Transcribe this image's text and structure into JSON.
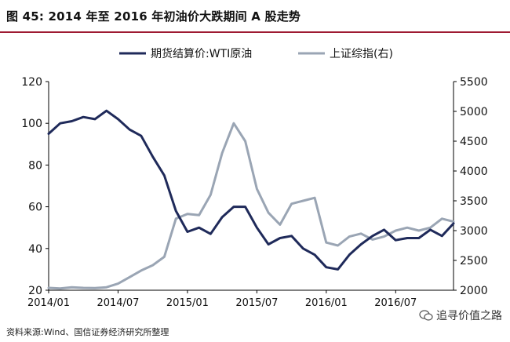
{
  "title": "图 45:  2014 年至 2016 年初油价大跌期间 A 股走势",
  "source": "资料来源:Wind、国信证券经济研究所整理",
  "watermark": "追寻价值之路",
  "colors": {
    "title_rule": "#9e1b32",
    "wti": "#1f2a5a",
    "sse": "#9aa5b4"
  },
  "chart_data": {
    "type": "line",
    "title": "",
    "legend_position": "top",
    "x": [
      "2014/01",
      "2014/02",
      "2014/03",
      "2014/04",
      "2014/05",
      "2014/06",
      "2014/07",
      "2014/08",
      "2014/09",
      "2014/10",
      "2014/11",
      "2014/12",
      "2015/01",
      "2015/02",
      "2015/03",
      "2015/04",
      "2015/05",
      "2015/06",
      "2015/07",
      "2015/08",
      "2015/09",
      "2015/10",
      "2015/11",
      "2015/12",
      "2016/01",
      "2016/02",
      "2016/03",
      "2016/04",
      "2016/05",
      "2016/06",
      "2016/07",
      "2016/08",
      "2016/09",
      "2016/10",
      "2016/11",
      "2016/12"
    ],
    "x_tick_labels": [
      "2014/01",
      "2014/07",
      "2015/01",
      "2015/07",
      "2016/01",
      "2016/07"
    ],
    "y_left": {
      "ticks": [
        20,
        40,
        60,
        80,
        100,
        120
      ],
      "ylim": [
        20,
        120
      ]
    },
    "y_right": {
      "ticks": [
        2000,
        2500,
        3000,
        3500,
        4000,
        4500,
        5000,
        5500
      ],
      "ylim": [
        2000,
        5500
      ]
    },
    "series": [
      {
        "name": "期货结算价:WTI原油",
        "axis": "left",
        "values": [
          95,
          100,
          101,
          103,
          102,
          106,
          102,
          97,
          94,
          84,
          75,
          58,
          48,
          50,
          47,
          55,
          60,
          60,
          50,
          42,
          45,
          46,
          40,
          37,
          31,
          30,
          37,
          42,
          46,
          49,
          44,
          45,
          45,
          49,
          46,
          52
        ]
      },
      {
        "name": "上证综指(右)",
        "axis": "right",
        "values": [
          2040,
          2030,
          2050,
          2040,
          2035,
          2050,
          2110,
          2220,
          2330,
          2420,
          2560,
          3200,
          3280,
          3260,
          3600,
          4300,
          4800,
          4500,
          3700,
          3300,
          3100,
          3450,
          3500,
          3550,
          2800,
          2750,
          2900,
          2950,
          2850,
          2900,
          3000,
          3050,
          3000,
          3050,
          3200,
          3150
        ]
      }
    ]
  }
}
